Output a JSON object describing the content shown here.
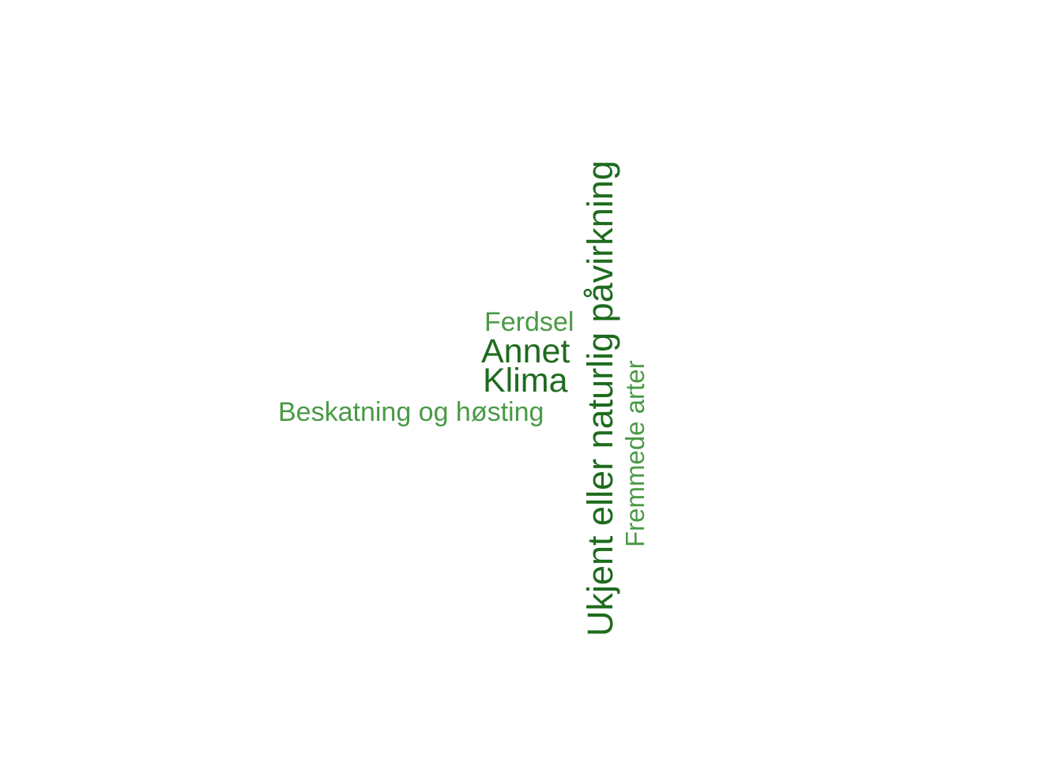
{
  "word_cloud": {
    "words": [
      {
        "text": "Ukjent eller naturlig påvirkning",
        "color": "#1e6b1e",
        "orientation": "vertical"
      },
      {
        "text": "Annet",
        "color": "#1e6b1e",
        "orientation": "horizontal"
      },
      {
        "text": "Klima",
        "color": "#1e6b1e",
        "orientation": "horizontal"
      },
      {
        "text": "Ferdsel",
        "color": "#4a9a46",
        "orientation": "horizontal"
      },
      {
        "text": "Beskatning og høsting",
        "color": "#4a9a46",
        "orientation": "horizontal"
      },
      {
        "text": "Fremmede arter",
        "color": "#4a9a46",
        "orientation": "vertical"
      }
    ]
  }
}
